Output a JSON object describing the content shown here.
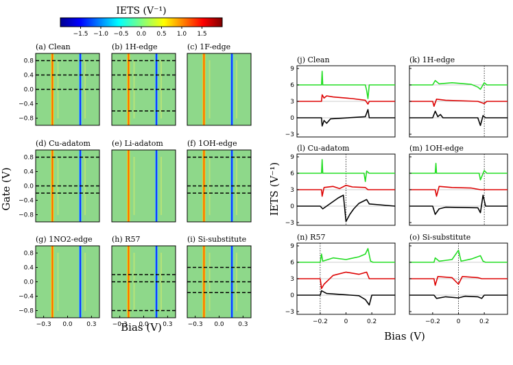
{
  "colorbar": {
    "title": "IETS (V⁻¹)",
    "ticks": [
      "−1.5",
      "−1.0",
      "−0.5",
      "0.0",
      "0.5",
      "1.0",
      "1.5"
    ],
    "range": [
      -2,
      2
    ]
  },
  "heatmap_axes": {
    "xlabel": "Bias (V)",
    "ylabel": "Gate (V)",
    "xticks": [
      "−0.3",
      "0.0",
      "0.3"
    ],
    "yticks": [
      "0.8",
      "0.4",
      "0.0",
      "−0.4",
      "−0.8"
    ]
  },
  "line_axes": {
    "xlabel": "Bias (V)",
    "ylabel": "IETS (V⁻¹)",
    "xticks": [
      "−0.2",
      "0",
      "0.2"
    ],
    "yticks": [
      "9",
      "6",
      "3",
      "0",
      "−3"
    ]
  },
  "colors": {
    "top": "#22dd22",
    "middle": "#dd0000",
    "bottom": "#000000",
    "heatmap_bg": "#8ed88a"
  },
  "chart_data": [
    {
      "type": "heatmap",
      "xlim": [
        -0.4,
        0.4
      ],
      "ylim": [
        -1.0,
        1.0
      ],
      "panels": [
        {
          "label": "(a) Clean",
          "dashed_gates": [
            0.8,
            0.4,
            0.0
          ]
        },
        {
          "label": "(b) 1H-edge",
          "dashed_gates": [
            0.8,
            0.4,
            0.0,
            -0.6
          ]
        },
        {
          "label": "(c) 1F-edge",
          "dashed_gates": []
        },
        {
          "label": "(d) Cu-adatom",
          "dashed_gates": [
            0.8,
            0.0,
            -0.2
          ]
        },
        {
          "label": "(e) Li-adatom",
          "dashed_gates": []
        },
        {
          "label": "(f) 1OH-edge",
          "dashed_gates": [
            0.8,
            0.0,
            -0.2
          ]
        },
        {
          "label": "(g) 1NO2-edge",
          "dashed_gates": []
        },
        {
          "label": "(h) R57",
          "dashed_gates": [
            0.2,
            0.0,
            -0.8
          ]
        },
        {
          "label": "(i) Si-substitute",
          "dashed_gates": [
            0.4,
            0.0,
            -0.3
          ]
        }
      ]
    },
    {
      "type": "line",
      "xlim": [
        -0.38,
        0.38
      ],
      "ylim": [
        -3.5,
        9.5
      ],
      "series_offsets": [
        6,
        3,
        0
      ],
      "panels": [
        {
          "label": "(j) Clean",
          "vline": null,
          "top": [
            [
              -0.38,
              6
            ],
            [
              -0.19,
              6
            ],
            [
              -0.185,
              8.5
            ],
            [
              -0.18,
              6
            ],
            [
              0.15,
              6
            ],
            [
              0.16,
              5.0
            ],
            [
              0.17,
              3.5
            ],
            [
              0.18,
              6
            ],
            [
              0.2,
              6
            ],
            [
              0.38,
              6
            ]
          ],
          "mid": [
            [
              -0.38,
              3
            ],
            [
              -0.19,
              3
            ],
            [
              -0.185,
              4.2
            ],
            [
              -0.17,
              3.6
            ],
            [
              -0.15,
              4.0
            ],
            [
              -0.1,
              3.8
            ],
            [
              0.05,
              3.5
            ],
            [
              0.15,
              3.2
            ],
            [
              0.17,
              2.5
            ],
            [
              0.18,
              3
            ],
            [
              0.38,
              3
            ]
          ],
          "bot": [
            [
              -0.38,
              0
            ],
            [
              -0.19,
              0
            ],
            [
              -0.185,
              -1.5
            ],
            [
              -0.17,
              -0.5
            ],
            [
              -0.15,
              -1.0
            ],
            [
              -0.12,
              -0.2
            ],
            [
              0.15,
              0.2
            ],
            [
              0.17,
              1.5
            ],
            [
              0.18,
              0
            ],
            [
              0.38,
              0
            ]
          ]
        },
        {
          "label": "(k) 1H-edge",
          "vline": 0.2,
          "top": [
            [
              -0.38,
              6
            ],
            [
              -0.2,
              6
            ],
            [
              -0.18,
              6.8
            ],
            [
              -0.15,
              6.2
            ],
            [
              -0.05,
              6.4
            ],
            [
              0.1,
              6.1
            ],
            [
              0.15,
              5.6
            ],
            [
              0.17,
              5.2
            ],
            [
              0.2,
              6.4
            ],
            [
              0.22,
              6
            ],
            [
              0.38,
              6
            ]
          ],
          "mid": [
            [
              -0.38,
              3
            ],
            [
              -0.2,
              3
            ],
            [
              -0.19,
              2.1
            ],
            [
              -0.17,
              3.4
            ],
            [
              -0.1,
              3.2
            ],
            [
              0.15,
              3.0
            ],
            [
              0.2,
              2.6
            ],
            [
              0.22,
              3
            ],
            [
              0.38,
              3
            ]
          ],
          "bot": [
            [
              -0.38,
              0
            ],
            [
              -0.2,
              0
            ],
            [
              -0.18,
              1.2
            ],
            [
              -0.16,
              0.2
            ],
            [
              -0.14,
              0.6
            ],
            [
              -0.12,
              0
            ],
            [
              0.15,
              0
            ],
            [
              0.17,
              -1.4
            ],
            [
              0.19,
              0.4
            ],
            [
              0.21,
              0
            ],
            [
              0.38,
              0
            ]
          ]
        },
        {
          "label": "(l) Cu-adatom",
          "vline": 0.0,
          "top": [
            [
              -0.38,
              6
            ],
            [
              -0.19,
              6
            ],
            [
              -0.185,
              8.5
            ],
            [
              -0.18,
              6
            ],
            [
              0.14,
              6
            ],
            [
              0.15,
              4.5
            ],
            [
              0.16,
              6.4
            ],
            [
              0.18,
              6
            ],
            [
              0.38,
              6
            ]
          ],
          "mid": [
            [
              -0.38,
              3
            ],
            [
              -0.19,
              3
            ],
            [
              -0.185,
              1.8
            ],
            [
              -0.17,
              3.4
            ],
            [
              -0.1,
              3.6
            ],
            [
              -0.05,
              3.2
            ],
            [
              0.0,
              3.8
            ],
            [
              0.05,
              3.5
            ],
            [
              0.15,
              3.4
            ],
            [
              0.17,
              3.0
            ],
            [
              0.38,
              3
            ]
          ],
          "bot": [
            [
              -0.38,
              0
            ],
            [
              -0.2,
              0
            ],
            [
              -0.18,
              -0.5
            ],
            [
              -0.12,
              0.5
            ],
            [
              -0.06,
              1.5
            ],
            [
              -0.02,
              2.0
            ],
            [
              0.0,
              -2.8
            ],
            [
              0.03,
              -1.5
            ],
            [
              0.06,
              -0.5
            ],
            [
              0.1,
              0.5
            ],
            [
              0.16,
              1.2
            ],
            [
              0.18,
              0.4
            ],
            [
              0.38,
              0
            ]
          ]
        },
        {
          "label": "(m) 1OH-edge",
          "vline": 0.2,
          "top": [
            [
              -0.38,
              6
            ],
            [
              -0.18,
              6
            ],
            [
              -0.175,
              7.8
            ],
            [
              -0.17,
              6
            ],
            [
              0.16,
              6
            ],
            [
              0.17,
              4.8
            ],
            [
              0.2,
              6.5
            ],
            [
              0.22,
              6
            ],
            [
              0.38,
              6
            ]
          ],
          "mid": [
            [
              -0.38,
              3
            ],
            [
              -0.18,
              3
            ],
            [
              -0.17,
              1.8
            ],
            [
              -0.15,
              3.6
            ],
            [
              -0.05,
              3.4
            ],
            [
              0.1,
              3.3
            ],
            [
              0.17,
              3.0
            ],
            [
              0.38,
              3
            ]
          ],
          "bot": [
            [
              -0.38,
              0
            ],
            [
              -0.2,
              0
            ],
            [
              -0.18,
              -1.5
            ],
            [
              -0.15,
              -0.5
            ],
            [
              -0.1,
              -0.2
            ],
            [
              0.15,
              -0.3
            ],
            [
              0.17,
              -1.2
            ],
            [
              0.19,
              2.0
            ],
            [
              0.21,
              0
            ],
            [
              0.38,
              0
            ]
          ]
        },
        {
          "label": "(n) R57",
          "vline": -0.2,
          "top": [
            [
              -0.38,
              6
            ],
            [
              -0.2,
              6
            ],
            [
              -0.19,
              7.5
            ],
            [
              -0.18,
              6.2
            ],
            [
              -0.1,
              6.8
            ],
            [
              0.0,
              6.5
            ],
            [
              0.1,
              7.0
            ],
            [
              0.15,
              7.5
            ],
            [
              0.17,
              8.5
            ],
            [
              0.19,
              6.2
            ],
            [
              0.21,
              6
            ],
            [
              0.38,
              6
            ]
          ],
          "mid": [
            [
              -0.38,
              3
            ],
            [
              -0.2,
              3
            ],
            [
              -0.19,
              1.2
            ],
            [
              -0.17,
              2.0
            ],
            [
              -0.1,
              3.6
            ],
            [
              0.0,
              4.2
            ],
            [
              0.1,
              3.8
            ],
            [
              0.16,
              4.2
            ],
            [
              0.18,
              3.0
            ],
            [
              0.38,
              3
            ]
          ],
          "bot": [
            [
              -0.38,
              0
            ],
            [
              -0.2,
              0
            ],
            [
              -0.19,
              0.8
            ],
            [
              -0.15,
              0.3
            ],
            [
              0.1,
              -0.1
            ],
            [
              0.15,
              -0.8
            ],
            [
              0.18,
              -1.8
            ],
            [
              0.2,
              0
            ],
            [
              0.38,
              0
            ]
          ]
        },
        {
          "label": "(o) Si-substitute",
          "vline": 0.0,
          "top": [
            [
              -0.38,
              6
            ],
            [
              -0.19,
              6
            ],
            [
              -0.18,
              6.8
            ],
            [
              -0.15,
              6.2
            ],
            [
              -0.05,
              6.5
            ],
            [
              0.0,
              8.2
            ],
            [
              0.02,
              6.2
            ],
            [
              0.1,
              6.6
            ],
            [
              0.17,
              7.2
            ],
            [
              0.19,
              6.2
            ],
            [
              0.21,
              6
            ],
            [
              0.38,
              6
            ]
          ],
          "mid": [
            [
              -0.38,
              3
            ],
            [
              -0.19,
              3
            ],
            [
              -0.18,
              1.8
            ],
            [
              -0.16,
              3.4
            ],
            [
              -0.05,
              3.2
            ],
            [
              0.0,
              2.0
            ],
            [
              0.03,
              3.4
            ],
            [
              0.15,
              3.2
            ],
            [
              0.18,
              3.0
            ],
            [
              0.38,
              3
            ]
          ],
          "bot": [
            [
              -0.38,
              0
            ],
            [
              -0.19,
              0
            ],
            [
              -0.17,
              -0.6
            ],
            [
              -0.1,
              -0.3
            ],
            [
              0.0,
              -0.5
            ],
            [
              0.05,
              -0.2
            ],
            [
              0.15,
              -0.3
            ],
            [
              0.18,
              -0.6
            ],
            [
              0.2,
              0
            ],
            [
              0.38,
              0
            ]
          ]
        }
      ]
    }
  ]
}
